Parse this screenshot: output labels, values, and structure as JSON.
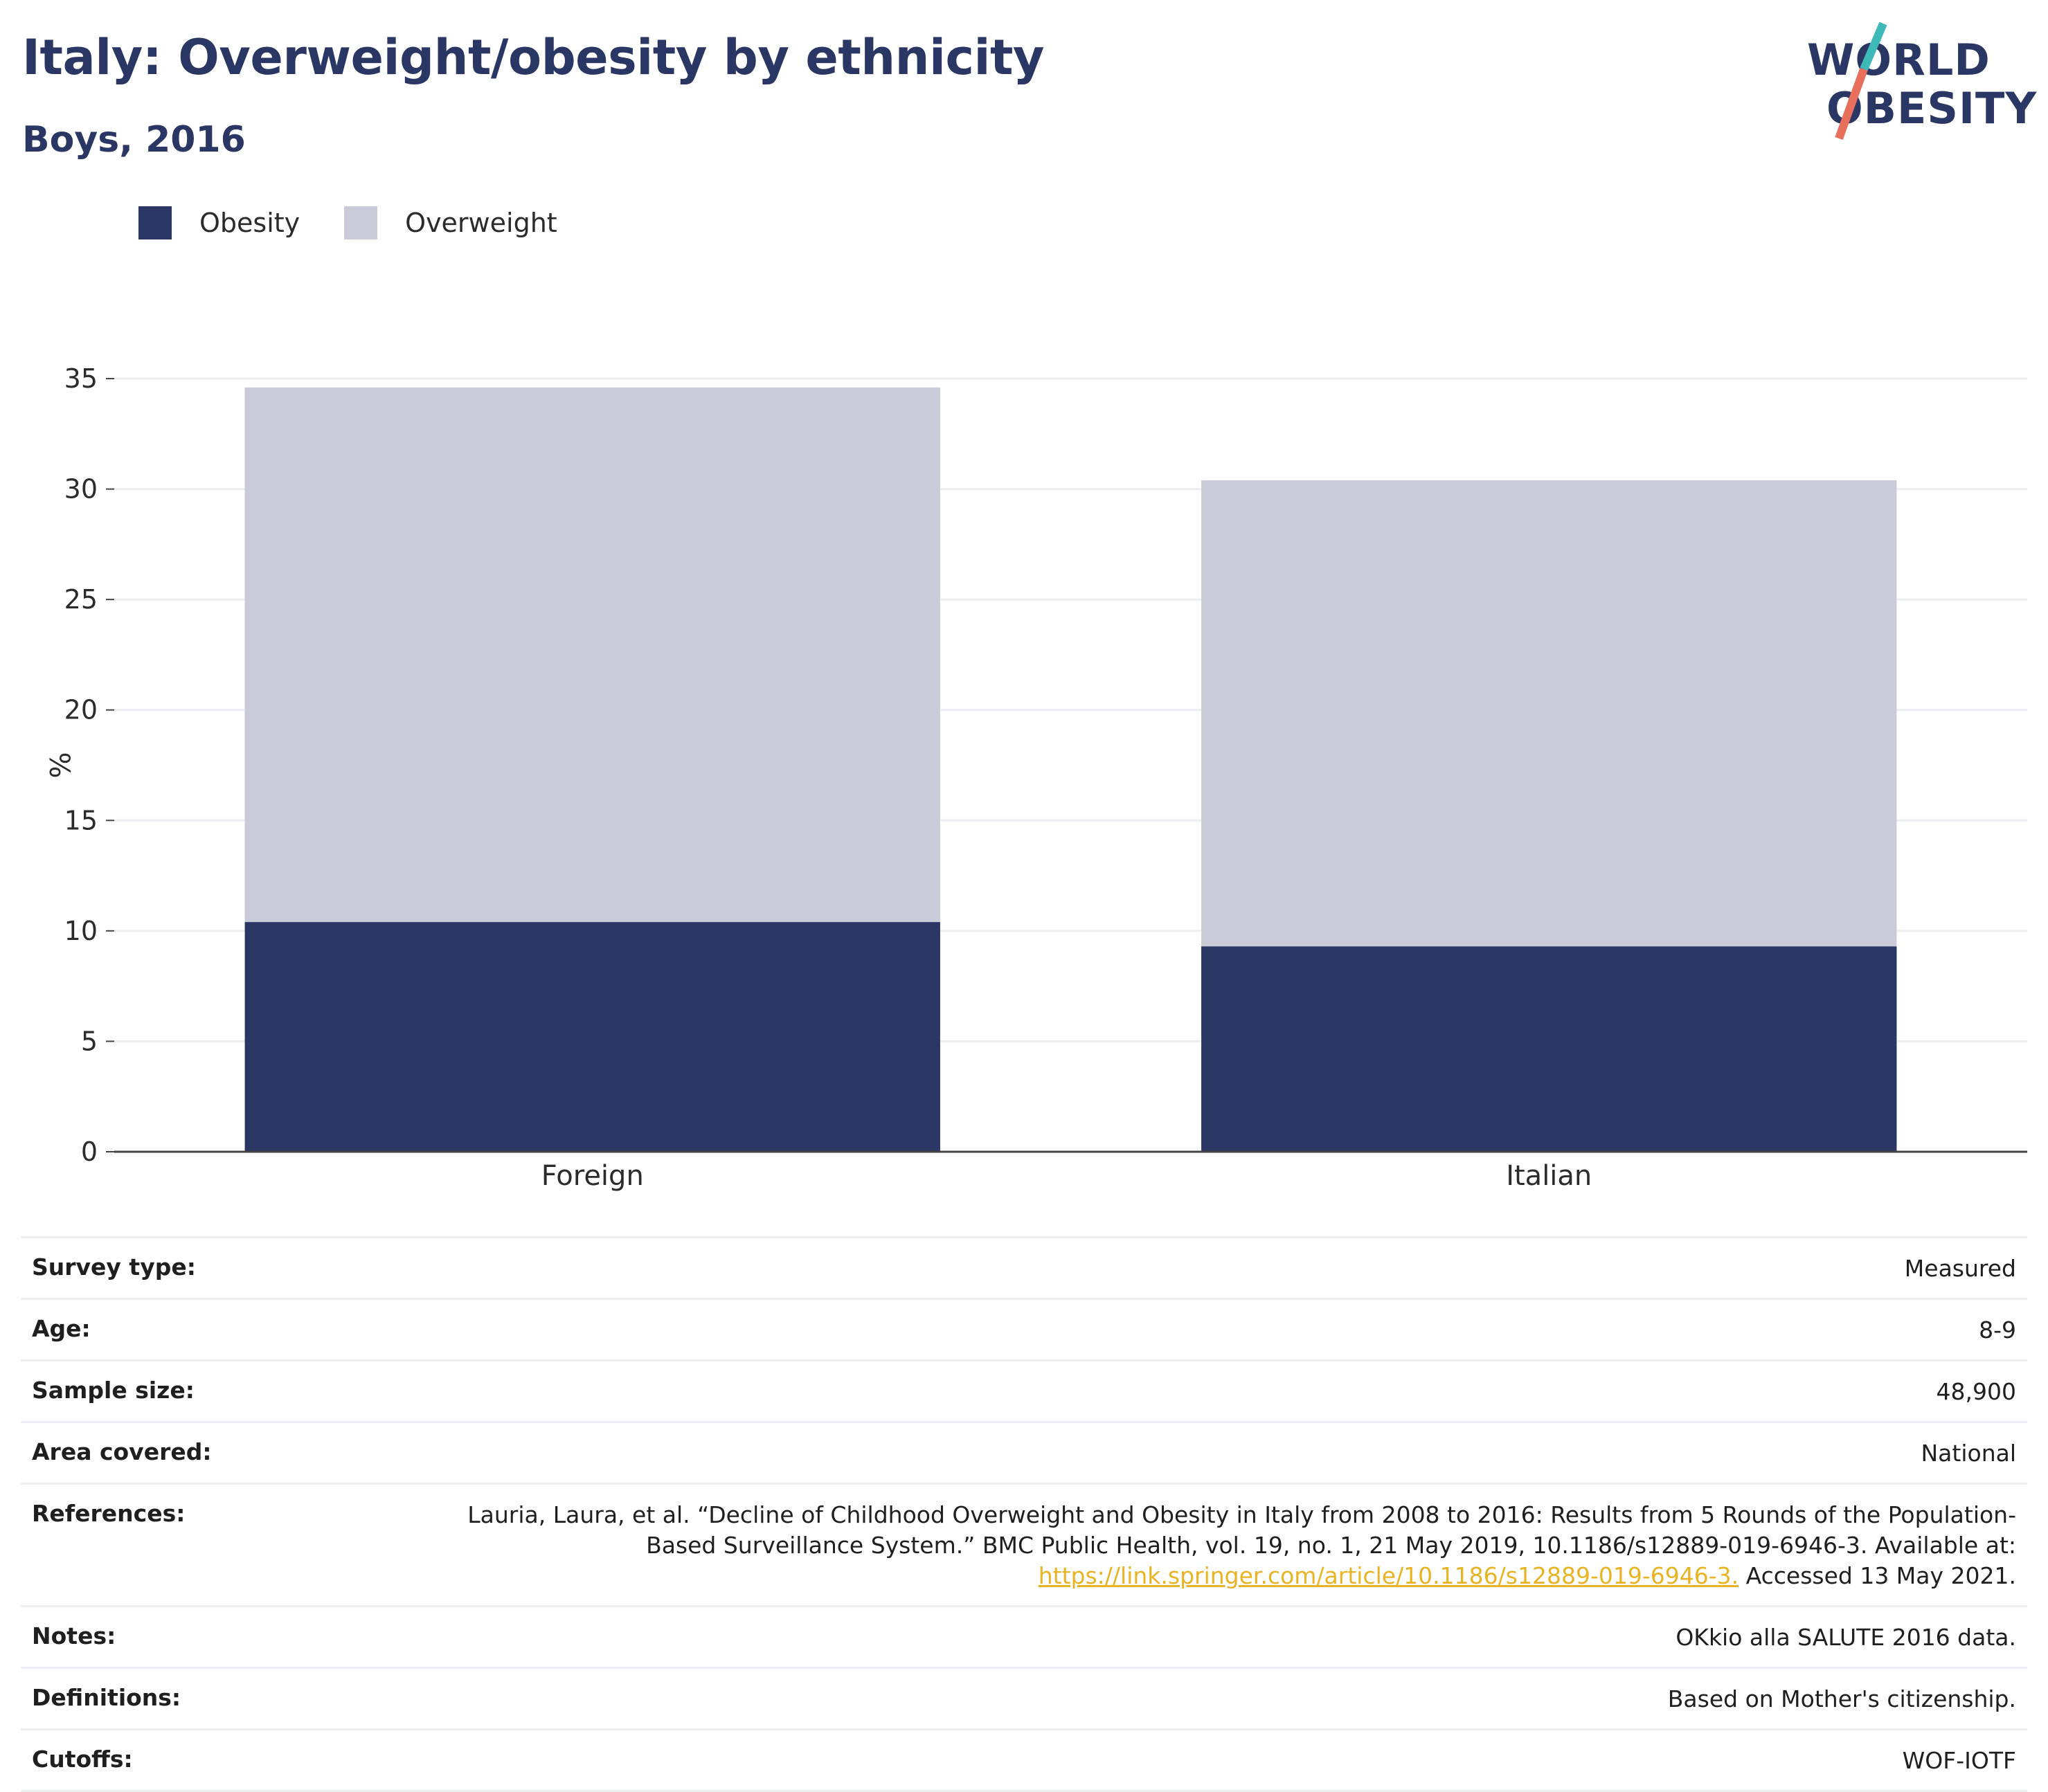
{
  "header": {
    "title": "Italy: Overweight/obesity by ethnicity",
    "subtitle": "Boys, 2016"
  },
  "logo": {
    "line1": "WORLD",
    "line2": "OBESITY",
    "accent_teal": "#3db9b7",
    "accent_coral": "#e76f5b"
  },
  "legend": [
    {
      "label": "Obesity",
      "color": "#2a3663"
    },
    {
      "label": "Overweight",
      "color": "#c9ccd8"
    }
  ],
  "chart_data": {
    "type": "bar",
    "stacked": true,
    "categories": [
      "Foreign",
      "Italian"
    ],
    "series": [
      {
        "name": "Obesity",
        "color": "#2a3663",
        "values": [
          10.4,
          9.3
        ]
      },
      {
        "name": "Overweight",
        "color": "#c9ccd8",
        "values": [
          24.2,
          21.1
        ]
      }
    ],
    "ylabel": "%",
    "ylim": [
      0,
      35
    ],
    "yticks": [
      "0",
      "5",
      "10",
      "15",
      "20",
      "25",
      "30",
      "35"
    ],
    "grid": true,
    "legend_position": "top-left"
  },
  "info": [
    {
      "label": "Survey type:",
      "value": "Measured"
    },
    {
      "label": "Age:",
      "value": "8-9"
    },
    {
      "label": "Sample size:",
      "value": "48,900"
    },
    {
      "label": "Area covered:",
      "value": "National"
    },
    {
      "label": "References:",
      "value_line1": "Lauria, Laura, et al. “Decline of Childhood Overweight and Obesity in Italy from 2008 to 2016: Results from 5 Rounds of the Population-",
      "value_line2": "Based Surveillance System.” BMC Public Health, vol. 19, no. 1, 21 May 2019, 10.1186/s12889-019-6946-3. Available at:",
      "link": "https://link.springer.com/article/10.1186/s12889-019-6946-3.",
      "value_after_link": " Accessed 13 May 2021."
    },
    {
      "label": "Notes:",
      "value": "OKkio alla SALUTE 2016 data."
    },
    {
      "label": "Definitions:",
      "value": "Based on Mother's citizenship."
    },
    {
      "label": "Cutoffs:",
      "value": "WOF-IOTF"
    }
  ]
}
